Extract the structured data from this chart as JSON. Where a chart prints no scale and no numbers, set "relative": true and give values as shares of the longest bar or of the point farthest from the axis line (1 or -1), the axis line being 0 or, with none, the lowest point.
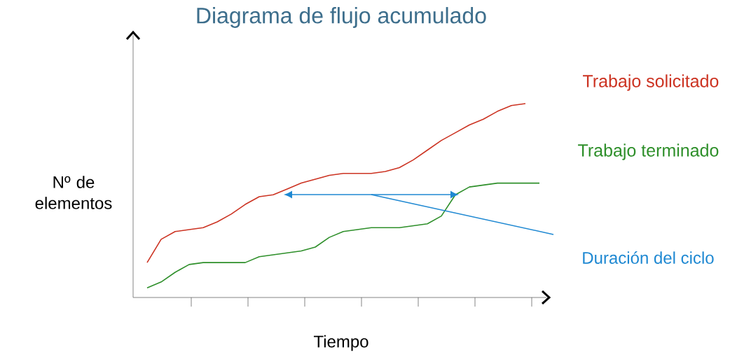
{
  "chart_data": {
    "type": "line",
    "title": "Diagrama de flujo acumulado",
    "xlabel": "Tiempo",
    "ylabel": "Nº de elementos",
    "relative": true,
    "marker": "none",
    "categories": [
      null,
      null,
      null,
      null,
      null,
      null,
      null,
      null,
      null,
      null,
      null,
      null,
      null,
      null,
      null,
      null,
      null,
      null,
      null,
      null,
      null,
      null,
      null,
      null,
      null,
      null,
      null,
      null,
      null,
      null
    ],
    "annotations": [
      "Duración del ciclo"
    ],
    "series": [
      {
        "name": "Trabajo solicitado",
        "color": "#cc3322",
        "values": [
          null,
          0.18,
          0.3,
          0.34,
          0.35,
          0.36,
          0.39,
          0.43,
          0.48,
          0.52,
          0.53,
          0.56,
          0.59,
          0.61,
          0.63,
          0.64,
          0.64,
          0.64,
          0.65,
          0.67,
          0.71,
          0.76,
          0.81,
          0.85,
          0.89,
          0.92,
          0.96,
          0.99,
          1.0,
          null
        ]
      },
      {
        "name": "Trabajo terminado",
        "color": "#2e8f2a",
        "values": [
          null,
          0.05,
          0.08,
          0.13,
          0.17,
          0.18,
          0.18,
          0.18,
          0.18,
          0.21,
          0.22,
          0.23,
          0.24,
          0.26,
          0.31,
          0.34,
          0.35,
          0.36,
          0.36,
          0.36,
          0.37,
          0.38,
          0.42,
          0.53,
          0.57,
          0.58,
          0.59,
          0.59,
          0.59,
          0.59
        ]
      }
    ]
  }
}
